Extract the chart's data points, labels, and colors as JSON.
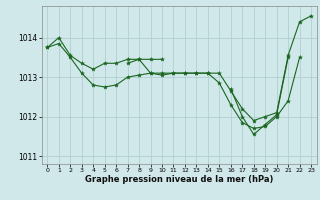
{
  "background_color": "#d0e8ea",
  "grid_color": "#b0d0d0",
  "line_color": "#1a6620",
  "marker_color": "#1a6620",
  "xlabel": "Graphe pression niveau de la mer (hPa)",
  "xlim": [
    -0.5,
    23.5
  ],
  "ylim": [
    1010.8,
    1014.8
  ],
  "yticks": [
    1011,
    1012,
    1013,
    1014
  ],
  "xticks": [
    0,
    1,
    2,
    3,
    4,
    5,
    6,
    7,
    8,
    9,
    10,
    11,
    12,
    13,
    14,
    15,
    16,
    17,
    18,
    19,
    20,
    21,
    22,
    23
  ],
  "series": [
    [
      1013.75,
      1013.85,
      1013.5,
      1013.1,
      1012.8,
      1012.75,
      1012.8,
      1013.0,
      1013.05,
      1013.1,
      1013.1,
      1013.1,
      1013.1,
      1013.1,
      1013.1,
      1013.1,
      1012.65,
      1012.2,
      1011.9,
      1012.0,
      1012.1,
      1013.55,
      1014.4,
      1014.55
    ],
    [
      1013.75,
      1014.0,
      1013.55,
      1013.35,
      1013.2,
      1013.35,
      1013.35,
      1013.45,
      1013.45,
      1013.45,
      1013.45,
      null,
      null,
      null,
      null,
      null,
      null,
      null,
      null,
      null,
      null,
      null,
      null,
      null
    ],
    [
      null,
      null,
      null,
      null,
      null,
      null,
      null,
      1013.35,
      1013.45,
      1013.1,
      1013.05,
      1013.1,
      1013.1,
      1013.1,
      1013.1,
      1012.85,
      1012.3,
      1011.85,
      1011.7,
      1011.75,
      1012.0,
      1012.4,
      1013.5,
      null
    ],
    [
      null,
      null,
      null,
      null,
      null,
      null,
      null,
      null,
      null,
      null,
      null,
      null,
      null,
      null,
      null,
      null,
      1012.7,
      1012.0,
      1011.55,
      1011.8,
      1012.05,
      1013.5,
      null,
      null
    ]
  ]
}
